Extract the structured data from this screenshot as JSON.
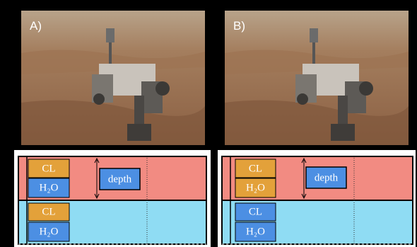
{
  "panels": [
    {
      "label": "A)",
      "top": [
        "CL",
        "H₂O"
      ],
      "bottom": [
        "CL",
        "H₂O"
      ],
      "depth": "depth"
    },
    {
      "label": "B)",
      "top": [
        "CL",
        "H₂O"
      ],
      "bottom": [
        "CL",
        "H₂O"
      ],
      "depth": "depth"
    }
  ]
}
